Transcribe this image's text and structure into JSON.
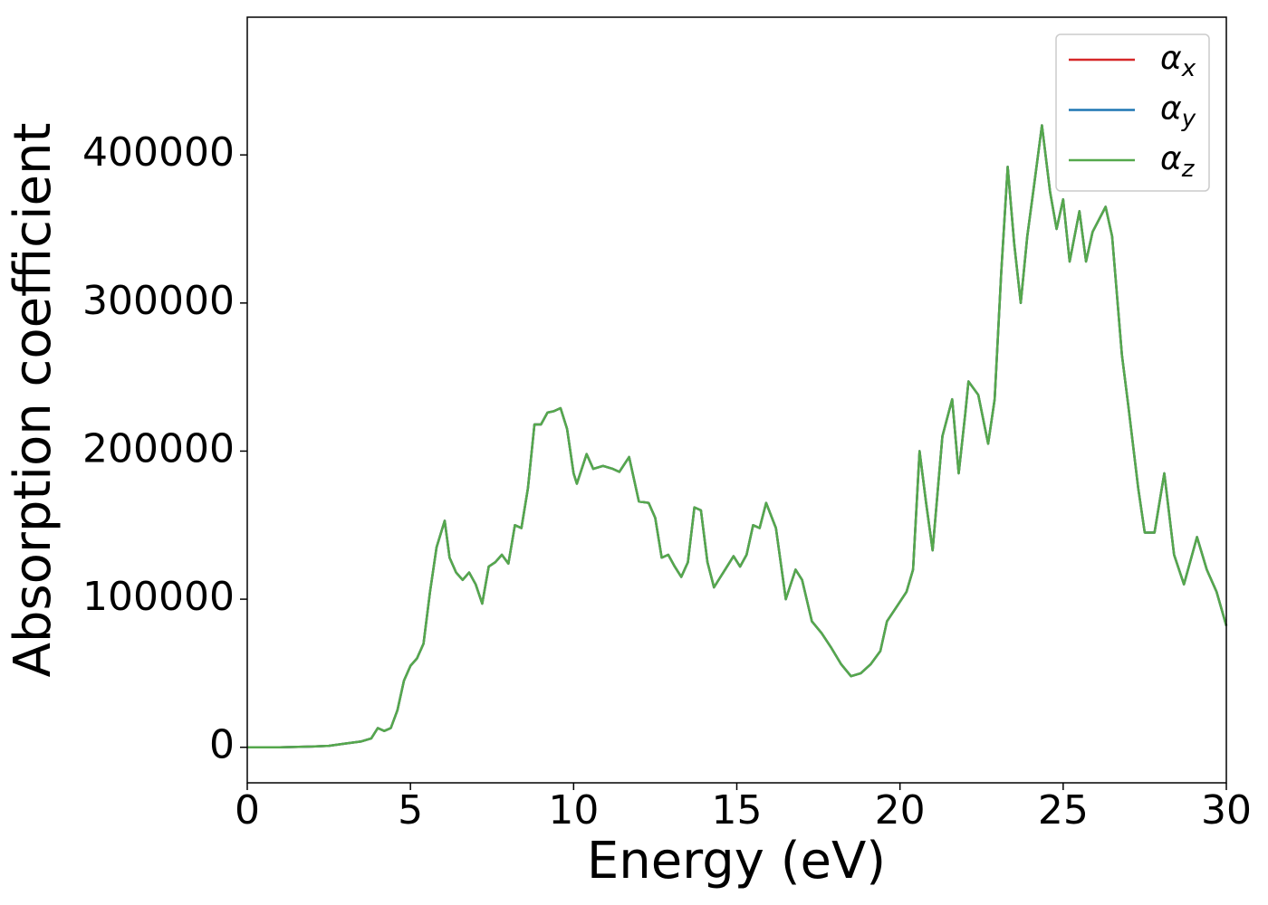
{
  "chart_data": {
    "type": "line",
    "xlabel": "Energy (eV)",
    "ylabel": "Absorption coefficient",
    "x": [
      0,
      1,
      2,
      2.5,
      3,
      3.5,
      3.8,
      4.0,
      4.2,
      4.4,
      4.6,
      4.8,
      5.0,
      5.2,
      5.4,
      5.6,
      5.8,
      6.05,
      6.2,
      6.4,
      6.6,
      6.8,
      7.0,
      7.2,
      7.4,
      7.6,
      7.8,
      8.0,
      8.2,
      8.4,
      8.6,
      8.8,
      9.0,
      9.2,
      9.4,
      9.6,
      9.8,
      10.0,
      10.1,
      10.4,
      10.6,
      10.9,
      11.2,
      11.4,
      11.7,
      12.0,
      12.3,
      12.5,
      12.7,
      12.9,
      13.1,
      13.3,
      13.5,
      13.7,
      13.9,
      14.1,
      14.3,
      14.5,
      14.7,
      14.9,
      15.1,
      15.3,
      15.5,
      15.7,
      15.9,
      16.2,
      16.5,
      16.8,
      17.0,
      17.3,
      17.6,
      17.9,
      18.2,
      18.5,
      18.8,
      19.1,
      19.4,
      19.6,
      19.9,
      20.2,
      20.4,
      20.6,
      20.8,
      21.0,
      21.3,
      21.6,
      21.8,
      22.0,
      22.1,
      22.4,
      22.7,
      22.9,
      23.1,
      23.3,
      23.5,
      23.7,
      23.9,
      24.1,
      24.35,
      24.6,
      24.8,
      25.0,
      25.2,
      25.5,
      25.7,
      25.9,
      26.3,
      26.5,
      26.8,
      27.0,
      27.3,
      27.5,
      27.8,
      28.1,
      28.4,
      28.7,
      29.1,
      29.4,
      29.7,
      30.0
    ],
    "series": [
      {
        "name": "αx",
        "color": "#d62728",
        "values": [
          0,
          0,
          500,
          1000,
          2500,
          4000,
          6000,
          13000,
          11000,
          13000,
          25000,
          45000,
          55000,
          60000,
          70000,
          105000,
          135000,
          153000,
          128000,
          118000,
          113000,
          118000,
          110000,
          97000,
          122000,
          125000,
          130000,
          124000,
          150000,
          148000,
          175000,
          218000,
          218000,
          226000,
          227000,
          229000,
          215000,
          185000,
          178000,
          198000,
          188000,
          190000,
          188000,
          186000,
          196000,
          166000,
          165000,
          155000,
          128000,
          130000,
          122000,
          115000,
          125000,
          162000,
          160000,
          125000,
          108000,
          115000,
          122000,
          129000,
          122000,
          130000,
          150000,
          148000,
          165000,
          148000,
          100000,
          120000,
          113000,
          85000,
          77000,
          67000,
          56000,
          48000,
          50000,
          56000,
          65000,
          85000,
          95000,
          105000,
          120000,
          200000,
          165000,
          133000,
          210000,
          235000,
          185000,
          225000,
          247000,
          238000,
          205000,
          235000,
          320000,
          392000,
          340000,
          300000,
          345000,
          378000,
          420000,
          375000,
          350000,
          370000,
          328000,
          362000,
          328000,
          348000,
          365000,
          345000,
          265000,
          230000,
          175000,
          145000,
          145000,
          185000,
          130000,
          110000,
          142000,
          120000,
          105000,
          82000
        ]
      },
      {
        "name": "αy",
        "color": "#1f77b4",
        "values": [
          0,
          0,
          500,
          1000,
          2500,
          4000,
          6000,
          13000,
          11000,
          13000,
          25000,
          45000,
          55000,
          60000,
          70000,
          105000,
          135000,
          153000,
          128000,
          118000,
          113000,
          118000,
          110000,
          97000,
          122000,
          125000,
          130000,
          124000,
          150000,
          148000,
          175000,
          218000,
          218000,
          226000,
          227000,
          229000,
          215000,
          185000,
          178000,
          198000,
          188000,
          190000,
          188000,
          186000,
          196000,
          166000,
          165000,
          155000,
          128000,
          130000,
          122000,
          115000,
          125000,
          162000,
          160000,
          125000,
          108000,
          115000,
          122000,
          129000,
          122000,
          130000,
          150000,
          148000,
          165000,
          148000,
          100000,
          120000,
          113000,
          85000,
          77000,
          67000,
          56000,
          48000,
          50000,
          56000,
          65000,
          85000,
          95000,
          105000,
          120000,
          200000,
          165000,
          133000,
          210000,
          235000,
          185000,
          225000,
          247000,
          238000,
          205000,
          235000,
          320000,
          392000,
          340000,
          300000,
          345000,
          378000,
          420000,
          375000,
          350000,
          370000,
          328000,
          362000,
          328000,
          348000,
          365000,
          345000,
          265000,
          230000,
          175000,
          145000,
          145000,
          185000,
          130000,
          110000,
          142000,
          120000,
          105000,
          82000
        ]
      },
      {
        "name": "αz",
        "color": "#55a84c",
        "values": [
          0,
          0,
          500,
          1000,
          2500,
          4000,
          6000,
          13000,
          11000,
          13000,
          25000,
          45000,
          55000,
          60000,
          70000,
          105000,
          135000,
          153000,
          128000,
          118000,
          113000,
          118000,
          110000,
          97000,
          122000,
          125000,
          130000,
          124000,
          150000,
          148000,
          175000,
          218000,
          218000,
          226000,
          227000,
          229000,
          215000,
          185000,
          178000,
          198000,
          188000,
          190000,
          188000,
          186000,
          196000,
          166000,
          165000,
          155000,
          128000,
          130000,
          122000,
          115000,
          125000,
          162000,
          160000,
          125000,
          108000,
          115000,
          122000,
          129000,
          122000,
          130000,
          150000,
          148000,
          165000,
          148000,
          100000,
          120000,
          113000,
          85000,
          77000,
          67000,
          56000,
          48000,
          50000,
          56000,
          65000,
          85000,
          95000,
          105000,
          120000,
          200000,
          165000,
          133000,
          210000,
          235000,
          185000,
          225000,
          247000,
          238000,
          205000,
          235000,
          320000,
          392000,
          340000,
          300000,
          345000,
          378000,
          420000,
          375000,
          350000,
          370000,
          328000,
          362000,
          328000,
          348000,
          365000,
          345000,
          265000,
          230000,
          175000,
          145000,
          145000,
          185000,
          130000,
          110000,
          142000,
          120000,
          105000,
          82000
        ]
      }
    ],
    "xlim": [
      0,
      30
    ],
    "xticks": [
      0,
      5,
      10,
      15,
      20,
      25,
      30
    ],
    "ylim": [
      -24000,
      493000
    ],
    "yticks": [
      0,
      100000,
      200000,
      300000,
      400000
    ],
    "grid": false,
    "legend": "upper right"
  }
}
